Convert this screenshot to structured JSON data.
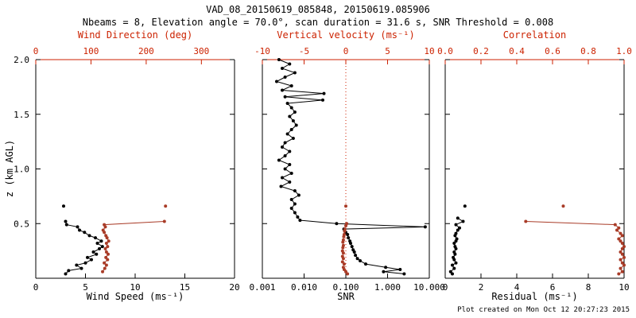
{
  "title": "VAD_08_20150619_085848, 20150619.085906",
  "subtitle": "Nbeams = 8, Elevation angle = 70.0°, scan duration = 31.6 s, SNR Threshold = 0.008",
  "footer": "Plot created on Mon Oct 12 20:27:23 2015",
  "colors": {
    "background": "#ffffff",
    "black": "#000000",
    "red_axis": "#cc2200",
    "red_data": "#a93c28"
  },
  "chart_data": [
    {
      "type": "scatter",
      "xlabel": "Wind Speed (ms⁻¹)",
      "top_xlabel": "Wind Direction (deg)",
      "ylabel": "z (km AGL)",
      "x_scale": "linear",
      "xlim": [
        0,
        20
      ],
      "x_ticks": [
        0,
        5,
        10,
        15,
        20
      ],
      "x_tick_labels": [
        "0",
        "5",
        "10",
        "15",
        "20"
      ],
      "top_xlim": [
        0,
        360
      ],
      "top_ticks": [
        0,
        100,
        200,
        300
      ],
      "top_tick_labels": [
        "0",
        "100",
        "200",
        "300"
      ],
      "ylim": [
        0,
        2.0
      ],
      "y_ticks": [
        0.5,
        1.0,
        1.5,
        2.0
      ],
      "y_tick_labels": [
        "0.5",
        "1.0",
        "1.5",
        "2.0"
      ],
      "series": [
        {
          "name": "wind_speed",
          "color": "black",
          "axis": "bottom",
          "line": true,
          "points": [
            [
              3.0,
              0.04
            ],
            [
              3.3,
              0.07
            ],
            [
              4.6,
              0.09
            ],
            [
              4.1,
              0.12
            ],
            [
              5.0,
              0.14
            ],
            [
              5.6,
              0.17
            ],
            [
              5.2,
              0.19
            ],
            [
              6.1,
              0.22
            ],
            [
              5.8,
              0.24
            ],
            [
              6.4,
              0.27
            ],
            [
              6.7,
              0.29
            ],
            [
              6.2,
              0.32
            ],
            [
              6.6,
              0.34
            ],
            [
              6.0,
              0.37
            ],
            [
              5.4,
              0.39
            ],
            [
              4.9,
              0.42
            ],
            [
              4.4,
              0.44
            ],
            [
              4.2,
              0.47
            ],
            [
              3.1,
              0.49
            ],
            [
              3.0,
              0.52
            ]
          ]
        },
        {
          "name": "wind_speed_isolated",
          "color": "black",
          "axis": "bottom",
          "line": false,
          "points": [
            [
              2.8,
              0.66
            ]
          ]
        },
        {
          "name": "wind_direction",
          "color": "red",
          "axis": "top",
          "line": true,
          "points": [
            [
              121,
              0.06
            ],
            [
              125,
              0.09
            ],
            [
              128,
              0.12
            ],
            [
              124,
              0.14
            ],
            [
              130,
              0.17
            ],
            [
              127,
              0.19
            ],
            [
              131,
              0.22
            ],
            [
              128,
              0.24
            ],
            [
              126,
              0.27
            ],
            [
              130,
              0.29
            ],
            [
              128,
              0.32
            ],
            [
              132,
              0.34
            ],
            [
              129,
              0.37
            ],
            [
              127,
              0.39
            ],
            [
              124,
              0.42
            ],
            [
              122,
              0.44
            ],
            [
              126,
              0.47
            ],
            [
              124,
              0.49
            ],
            [
              233,
              0.52
            ]
          ]
        },
        {
          "name": "wind_direction_isolated",
          "color": "red",
          "axis": "top",
          "line": false,
          "points": [
            [
              235,
              0.66
            ]
          ]
        }
      ]
    },
    {
      "type": "scatter",
      "xlabel": "SNR",
      "top_xlabel": "Vertical velocity (ms⁻¹)",
      "x_scale": "log",
      "xlim": [
        0.001,
        10
      ],
      "x_ticks": [
        0.001,
        0.01,
        0.1,
        1,
        10
      ],
      "x_tick_labels": [
        "0.001",
        "0.010",
        "0.100",
        "1.000",
        "10.000"
      ],
      "top_xlim": [
        -10,
        10
      ],
      "top_ticks": [
        -10,
        -5,
        0,
        5,
        10
      ],
      "top_tick_labels": [
        "-10",
        "-5",
        "0",
        "5",
        "10"
      ],
      "ref_top_x": 0,
      "ylim": [
        0,
        2.0
      ],
      "y_ticks": [
        0.5,
        1.0,
        1.5,
        2.0
      ],
      "series": [
        {
          "name": "snr",
          "color": "black",
          "axis": "bottom",
          "line": true,
          "points": [
            [
              0.0025,
              2.0
            ],
            [
              0.0045,
              1.96
            ],
            [
              0.003,
              1.92
            ],
            [
              0.006,
              1.88
            ],
            [
              0.0035,
              1.84
            ],
            [
              0.0022,
              1.8
            ],
            [
              0.005,
              1.76
            ],
            [
              0.003,
              1.72
            ],
            [
              0.03,
              1.69
            ],
            [
              0.0035,
              1.66
            ],
            [
              0.028,
              1.63
            ],
            [
              0.004,
              1.6
            ],
            [
              0.005,
              1.56
            ],
            [
              0.006,
              1.52
            ],
            [
              0.0045,
              1.48
            ],
            [
              0.0055,
              1.44
            ],
            [
              0.0065,
              1.4
            ],
            [
              0.005,
              1.36
            ],
            [
              0.004,
              1.32
            ],
            [
              0.0055,
              1.28
            ],
            [
              0.0035,
              1.24
            ],
            [
              0.003,
              1.2
            ],
            [
              0.0045,
              1.16
            ],
            [
              0.0035,
              1.12
            ],
            [
              0.0025,
              1.08
            ],
            [
              0.0045,
              1.04
            ],
            [
              0.0035,
              1.0
            ],
            [
              0.005,
              0.96
            ],
            [
              0.003,
              0.92
            ],
            [
              0.0045,
              0.88
            ],
            [
              0.0028,
              0.84
            ],
            [
              0.006,
              0.8
            ],
            [
              0.0075,
              0.76
            ],
            [
              0.005,
              0.72
            ],
            [
              0.006,
              0.68
            ],
            [
              0.005,
              0.64
            ],
            [
              0.006,
              0.6
            ],
            [
              0.007,
              0.56
            ],
            [
              0.008,
              0.53
            ],
            [
              0.06,
              0.5
            ],
            [
              8.0,
              0.47
            ],
            [
              0.09,
              0.45
            ],
            [
              0.1,
              0.42
            ],
            [
              0.11,
              0.4
            ],
            [
              0.115,
              0.37
            ],
            [
              0.125,
              0.34
            ],
            [
              0.13,
              0.32
            ],
            [
              0.14,
              0.29
            ],
            [
              0.15,
              0.26
            ],
            [
              0.16,
              0.24
            ],
            [
              0.17,
              0.21
            ],
            [
              0.19,
              0.18
            ],
            [
              0.22,
              0.16
            ],
            [
              0.3,
              0.13
            ],
            [
              0.9,
              0.1
            ],
            [
              2.0,
              0.08
            ],
            [
              0.8,
              0.06
            ],
            [
              2.5,
              0.04
            ]
          ]
        },
        {
          "name": "vertical_velocity",
          "color": "red",
          "axis": "top",
          "line": false,
          "points": [
            [
              0.2,
              0.04
            ],
            [
              0.0,
              0.06
            ],
            [
              -0.2,
              0.08
            ],
            [
              -0.3,
              0.1
            ],
            [
              -0.2,
              0.13
            ],
            [
              -0.4,
              0.15
            ],
            [
              -0.3,
              0.18
            ],
            [
              -0.4,
              0.2
            ],
            [
              -0.3,
              0.23
            ],
            [
              -0.4,
              0.25
            ],
            [
              -0.35,
              0.28
            ],
            [
              -0.3,
              0.3
            ],
            [
              -0.35,
              0.33
            ],
            [
              -0.3,
              0.35
            ],
            [
              -0.25,
              0.38
            ],
            [
              -0.2,
              0.4
            ],
            [
              -0.15,
              0.43
            ],
            [
              -0.1,
              0.45
            ],
            [
              0.0,
              0.48
            ],
            [
              0.1,
              0.5
            ]
          ]
        },
        {
          "name": "vertical_velocity_isolated",
          "color": "red",
          "axis": "top",
          "line": false,
          "points": [
            [
              0.0,
              0.66
            ]
          ]
        }
      ]
    },
    {
      "type": "scatter",
      "xlabel": "Residual (ms⁻¹)",
      "top_xlabel": "Correlation",
      "x_scale": "linear",
      "xlim": [
        0,
        10
      ],
      "x_ticks": [
        0,
        2,
        4,
        6,
        8,
        10
      ],
      "x_tick_labels": [
        "0",
        "2",
        "4",
        "6",
        "8",
        "10"
      ],
      "top_xlim": [
        0,
        1
      ],
      "top_ticks": [
        0,
        0.2,
        0.4,
        0.6,
        0.8,
        1
      ],
      "top_tick_labels": [
        "0.0",
        "0.2",
        "0.4",
        "0.6",
        "0.8",
        "1.0"
      ],
      "ylim": [
        0,
        2.0
      ],
      "y_ticks": [
        0.5,
        1.0,
        1.5,
        2.0
      ],
      "series": [
        {
          "name": "residual",
          "color": "black",
          "axis": "bottom",
          "line": true,
          "points": [
            [
              0.4,
              0.04
            ],
            [
              0.3,
              0.06
            ],
            [
              0.5,
              0.09
            ],
            [
              0.4,
              0.12
            ],
            [
              0.6,
              0.14
            ],
            [
              0.5,
              0.17
            ],
            [
              0.45,
              0.19
            ],
            [
              0.55,
              0.22
            ],
            [
              0.5,
              0.24
            ],
            [
              0.6,
              0.27
            ],
            [
              0.55,
              0.29
            ],
            [
              0.5,
              0.32
            ],
            [
              0.6,
              0.34
            ],
            [
              0.65,
              0.36
            ],
            [
              0.55,
              0.39
            ],
            [
              0.6,
              0.41
            ],
            [
              0.7,
              0.44
            ],
            [
              0.8,
              0.46
            ],
            [
              0.6,
              0.49
            ],
            [
              1.0,
              0.52
            ],
            [
              0.7,
              0.55
            ]
          ]
        },
        {
          "name": "residual_isolated",
          "color": "black",
          "axis": "bottom",
          "line": false,
          "points": [
            [
              1.1,
              0.66
            ]
          ]
        },
        {
          "name": "correlation",
          "color": "red",
          "axis": "top",
          "line": true,
          "points": [
            [
              0.97,
              0.04
            ],
            [
              0.99,
              0.06
            ],
            [
              0.98,
              0.09
            ],
            [
              1.0,
              0.12
            ],
            [
              0.99,
              0.14
            ],
            [
              0.98,
              0.17
            ],
            [
              1.0,
              0.19
            ],
            [
              0.99,
              0.22
            ],
            [
              0.98,
              0.24
            ],
            [
              0.99,
              0.27
            ],
            [
              1.0,
              0.29
            ],
            [
              0.99,
              0.32
            ],
            [
              0.98,
              0.34
            ],
            [
              0.97,
              0.36
            ],
            [
              0.99,
              0.39
            ],
            [
              0.98,
              0.41
            ],
            [
              0.96,
              0.44
            ],
            [
              0.97,
              0.46
            ],
            [
              0.95,
              0.49
            ],
            [
              0.45,
              0.52
            ]
          ]
        },
        {
          "name": "correlation_isolated",
          "color": "red",
          "axis": "top",
          "line": false,
          "points": [
            [
              0.66,
              0.66
            ]
          ]
        }
      ]
    }
  ]
}
